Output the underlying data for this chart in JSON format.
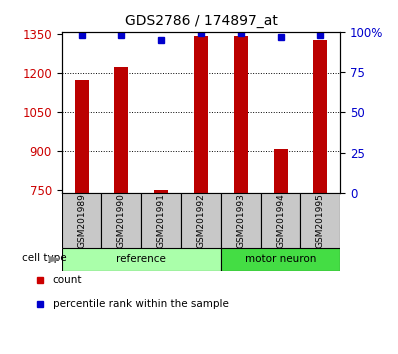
{
  "title": "GDS2786 / 174897_at",
  "samples": [
    "GSM201989",
    "GSM201990",
    "GSM201991",
    "GSM201992",
    "GSM201993",
    "GSM201994",
    "GSM201995"
  ],
  "counts": [
    1175,
    1225,
    752,
    1345,
    1345,
    910,
    1330
  ],
  "percentile_ranks": [
    98,
    98,
    95,
    99,
    99,
    97,
    98
  ],
  "ylim_left": [
    740,
    1360
  ],
  "ylim_right": [
    0,
    100
  ],
  "yticks_left": [
    750,
    900,
    1050,
    1200,
    1350
  ],
  "yticks_right": [
    0,
    25,
    50,
    75,
    100
  ],
  "bar_color": "#BB0000",
  "dot_color": "#0000CC",
  "tick_color_left": "#CC0000",
  "tick_color_right": "#0000CC",
  "sample_bg": "#C8C8C8",
  "ref_color": "#AAFFAA",
  "motor_color": "#44DD44",
  "group_info": [
    {
      "label": "reference",
      "start": 0,
      "end": 3,
      "color": "#AAFFAA"
    },
    {
      "label": "motor neuron",
      "start": 4,
      "end": 6,
      "color": "#44DD44"
    }
  ],
  "legend_count_color": "#CC0000",
  "legend_pct_color": "#0000CC",
  "bar_width": 0.35
}
